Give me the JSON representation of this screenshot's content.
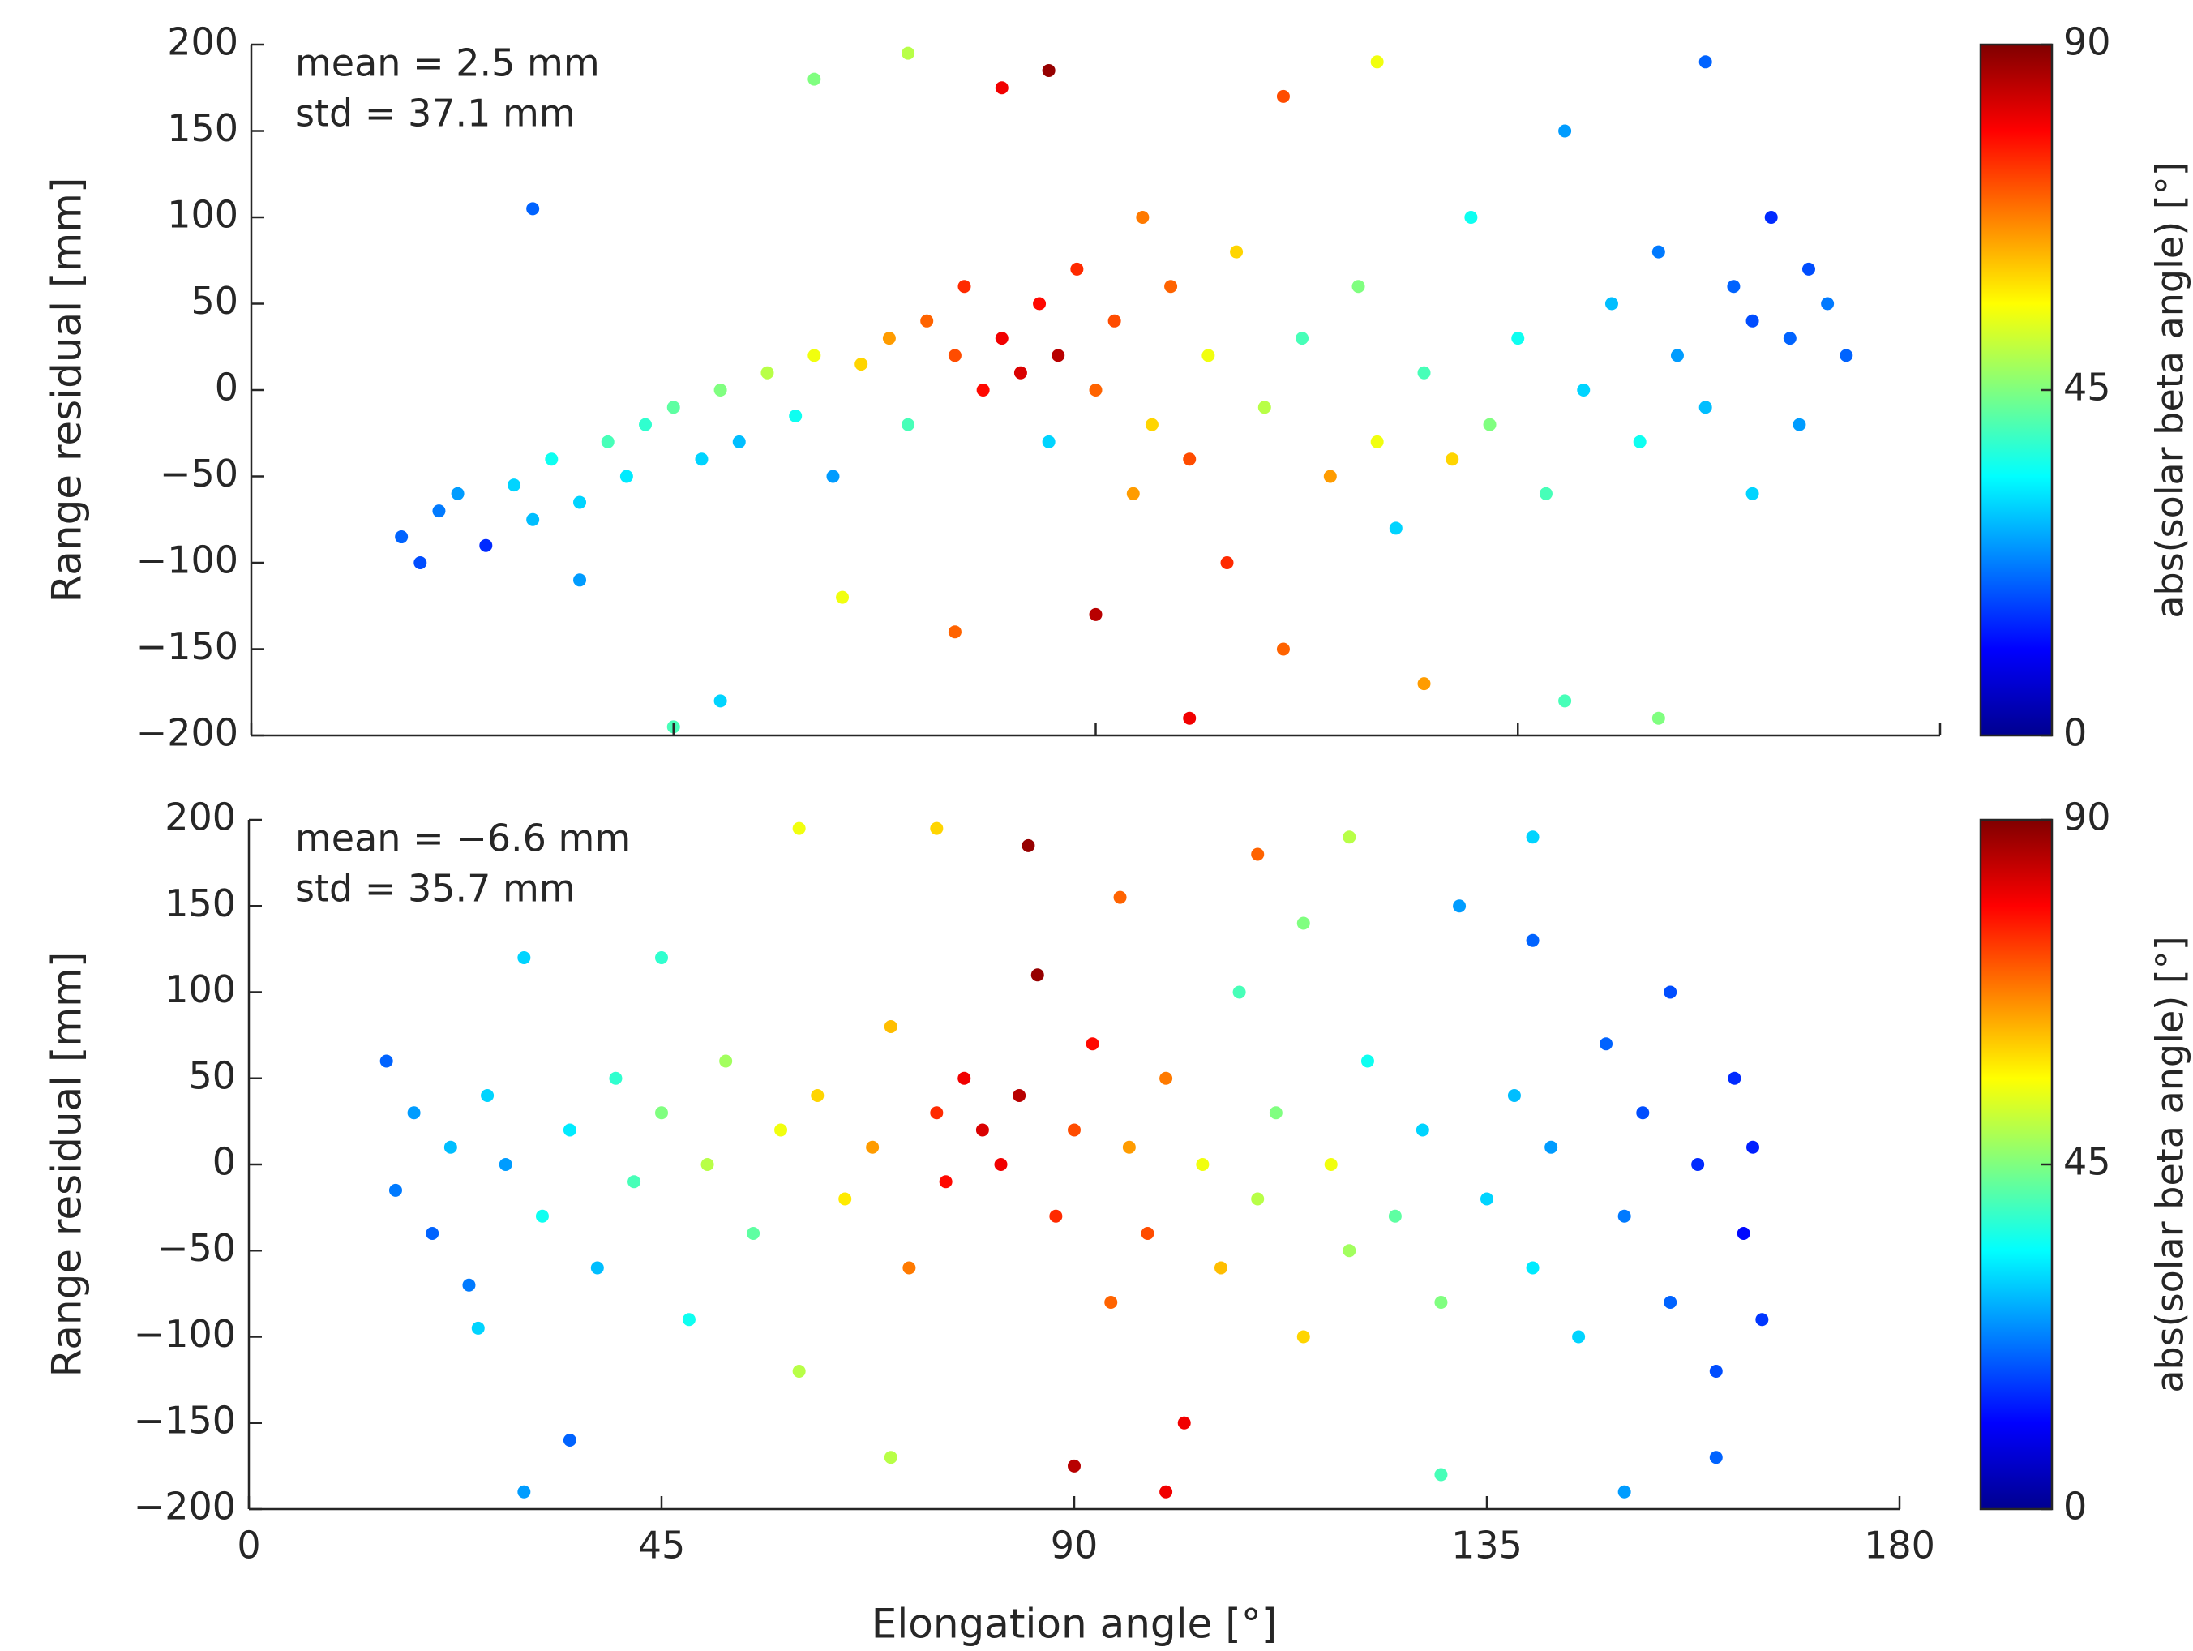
{
  "chart_data": [
    {
      "type": "scatter",
      "ylabel": "Range residual [mm]",
      "show_xtick_labels": false,
      "xlim": [
        0,
        180
      ],
      "xticks": [
        0,
        45,
        90,
        135,
        180
      ],
      "ylim": [
        -200,
        200
      ],
      "yticks": [
        200,
        150,
        100,
        50,
        0,
        {
          "value": -50,
          "label": "−50"
        },
        {
          "value": -100,
          "label": "−100"
        },
        {
          "value": -150,
          "label": "−150"
        },
        {
          "value": -200,
          "label": "−200"
        }
      ],
      "annotations": [
        "mean = 2.5 mm",
        "std = 37.1 mm"
      ],
      "colorbar": {
        "label": "abs(solar beta angle) [°]",
        "clim": [
          0,
          90
        ],
        "ticks": [
          0,
          45,
          90
        ],
        "colormap": "jet"
      },
      "points": {
        "x": [
          16,
          18,
          20,
          22,
          25,
          28,
          30,
          32,
          35,
          38,
          40,
          42,
          45,
          48,
          50,
          52,
          55,
          58,
          60,
          62,
          65,
          68,
          70,
          72,
          75,
          76,
          78,
          80,
          82,
          84,
          85,
          86,
          88,
          90,
          92,
          94,
          95,
          96,
          98,
          100,
          102,
          104,
          105,
          108,
          110,
          112,
          115,
          118,
          120,
          122,
          125,
          128,
          130,
          132,
          135,
          138,
          140,
          142,
          145,
          148,
          150,
          152,
          155,
          158,
          160,
          162,
          164,
          166,
          168,
          170,
          165,
          160,
          155,
          140,
          100,
          85,
          80,
          70,
          60,
          50,
          120,
          125,
          30,
          45,
          110,
          90,
          75,
          150,
          63,
          35
        ],
        "y": [
          -85,
          -100,
          -70,
          -60,
          -90,
          -55,
          -75,
          -40,
          -65,
          -30,
          -50,
          -20,
          -10,
          -40,
          0,
          -30,
          10,
          -15,
          20,
          -50,
          15,
          30,
          -20,
          40,
          20,
          60,
          0,
          30,
          10,
          50,
          -30,
          20,
          70,
          0,
          40,
          -60,
          100,
          -20,
          60,
          -40,
          20,
          -100,
          80,
          -10,
          -150,
          30,
          -50,
          60,
          -30,
          -80,
          10,
          -40,
          100,
          -20,
          30,
          -60,
          150,
          0,
          50,
          -30,
          80,
          20,
          -10,
          60,
          40,
          100,
          30,
          70,
          50,
          20,
          -20,
          -60,
          190,
          -180,
          -190,
          185,
          175,
          195,
          180,
          -180,
          190,
          -170,
          105,
          -195,
          170,
          -130,
          -140,
          -190,
          -120,
          -110
        ],
        "c": [
          20,
          18,
          22,
          25,
          15,
          30,
          28,
          35,
          30,
          40,
          32,
          38,
          42,
          30,
          45,
          28,
          50,
          35,
          55,
          25,
          60,
          65,
          40,
          70,
          72,
          75,
          78,
          80,
          82,
          78,
          30,
          85,
          75,
          70,
          72,
          65,
          68,
          60,
          70,
          72,
          55,
          75,
          60,
          50,
          70,
          40,
          65,
          45,
          55,
          30,
          40,
          60,
          35,
          45,
          35,
          40,
          25,
          30,
          28,
          35,
          22,
          25,
          28,
          20,
          18,
          15,
          20,
          18,
          22,
          20,
          25,
          30,
          20,
          40,
          80,
          88,
          80,
          50,
          45,
          30,
          55,
          65,
          20,
          40,
          72,
          85,
          70,
          45,
          55,
          25
        ]
      }
    },
    {
      "type": "scatter",
      "ylabel": "Range residual [mm]",
      "xlabel": "Elongation angle [°]",
      "show_xtick_labels": true,
      "xlim": [
        0,
        180
      ],
      "xticks": [
        0,
        45,
        90,
        135,
        180
      ],
      "ylim": [
        -200,
        200
      ],
      "yticks": [
        200,
        150,
        100,
        50,
        0,
        {
          "value": -50,
          "label": "−50"
        },
        {
          "value": -100,
          "label": "−100"
        },
        {
          "value": -150,
          "label": "−150"
        },
        {
          "value": -200,
          "label": "−200"
        }
      ],
      "annotations": [
        "mean = −6.6 mm",
        "std = 35.7 mm"
      ],
      "colorbar": {
        "label": "abs(solar beta angle) [°]",
        "clim": [
          0,
          90
        ],
        "ticks": [
          0,
          45,
          90
        ],
        "colormap": "jet"
      },
      "points": {
        "x": [
          15,
          16,
          18,
          20,
          22,
          24,
          26,
          28,
          30,
          32,
          35,
          38,
          40,
          42,
          45,
          48,
          50,
          52,
          55,
          58,
          60,
          62,
          65,
          68,
          70,
          72,
          75,
          76,
          78,
          80,
          82,
          84,
          86,
          88,
          90,
          92,
          94,
          96,
          98,
          100,
          102,
          104,
          106,
          108,
          110,
          112,
          115,
          118,
          120,
          122,
          125,
          128,
          130,
          132,
          135,
          138,
          140,
          142,
          145,
          148,
          150,
          152,
          155,
          158,
          160,
          162,
          163,
          164,
          165,
          160,
          150,
          140,
          130,
          120,
          110,
          100,
          85,
          75,
          60,
          45,
          35,
          30,
          25,
          140,
          155,
          90,
          70,
          115,
          95
        ],
        "y": [
          60,
          -15,
          30,
          -40,
          10,
          -70,
          40,
          0,
          120,
          -30,
          20,
          -60,
          50,
          -10,
          30,
          -90,
          0,
          60,
          -40,
          20,
          -120,
          40,
          -20,
          10,
          80,
          -60,
          30,
          -10,
          50,
          20,
          0,
          40,
          110,
          -30,
          20,
          70,
          -80,
          10,
          -40,
          50,
          -150,
          0,
          -60,
          100,
          -20,
          30,
          -100,
          0,
          -50,
          60,
          -30,
          20,
          -80,
          150,
          -20,
          40,
          -60,
          10,
          -100,
          70,
          -30,
          30,
          -80,
          0,
          -120,
          50,
          -40,
          10,
          -90,
          -170,
          -190,
          190,
          -180,
          190,
          180,
          -190,
          185,
          195,
          195,
          120,
          -160,
          -190,
          -95,
          130,
          100,
          -175,
          -170,
          140,
          155
        ],
        "c": [
          20,
          22,
          25,
          20,
          28,
          22,
          30,
          25,
          30,
          35,
          32,
          28,
          38,
          40,
          45,
          35,
          50,
          48,
          42,
          55,
          50,
          60,
          58,
          65,
          62,
          68,
          75,
          78,
          80,
          82,
          80,
          85,
          88,
          75,
          72,
          78,
          70,
          65,
          72,
          68,
          80,
          55,
          62,
          40,
          50,
          45,
          60,
          55,
          48,
          35,
          42,
          30,
          45,
          25,
          30,
          28,
          32,
          25,
          30,
          20,
          22,
          18,
          20,
          15,
          18,
          15,
          12,
          14,
          16,
          20,
          25,
          30,
          40,
          50,
          70,
          80,
          88,
          60,
          55,
          38,
          20,
          25,
          30,
          20,
          18,
          85,
          50,
          45,
          70
        ]
      }
    }
  ]
}
